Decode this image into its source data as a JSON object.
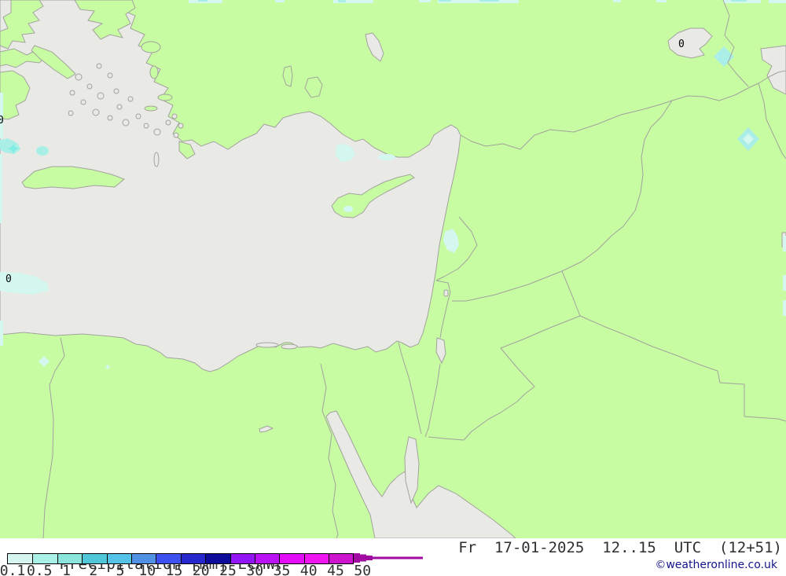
{
  "map": {
    "contour_labels": [
      {
        "text": "0"
      },
      {
        "text": "0"
      },
      {
        "text": "0"
      }
    ],
    "colors": {
      "land": "#c7fca2",
      "sea": "#e9e9e6",
      "coastline": "#a2a29e",
      "precip_light": "#d4f7f0",
      "precip_medium": "#a9efe7",
      "precip_core": "#7fece4",
      "contour_label": "#000000"
    }
  },
  "legend": {
    "title": "Precipitation",
    "unit": "[mm]",
    "model": "ECMWF",
    "scale": {
      "values": [
        "0.1",
        "0.5",
        "1",
        "2",
        "5",
        "10",
        "15",
        "20",
        "25",
        "30",
        "35",
        "40",
        "45",
        "50"
      ],
      "colors": [
        "#d5f5ee",
        "#a9f1e7",
        "#8be5dd",
        "#4fc7d9",
        "#55c3e7",
        "#5091e3",
        "#3d51f1",
        "#2628ce",
        "#0d0b9a",
        "#9115f5",
        "#b913f5",
        "#e30df9",
        "#ef15f1",
        "#cd13cd"
      ],
      "overflow_arrow_color": "#a10ba1"
    }
  },
  "footer": {
    "datetime": "Fr  17-01-2025  12..15  UTC  (12+51)",
    "copyright": "©weatheronline.co.uk"
  }
}
